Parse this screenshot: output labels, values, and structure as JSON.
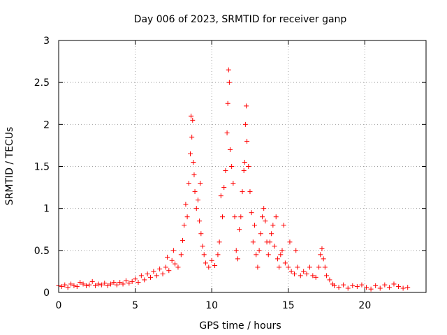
{
  "chart_data": {
    "type": "scatter",
    "title": "Day 006 of 2023, SRMTID for receiver ganp",
    "xlabel": "GPS time / hours",
    "ylabel": "SRMTID / TECUs",
    "xlim": [
      0,
      24
    ],
    "ylim": [
      0,
      3
    ],
    "xticks": [
      0,
      5,
      10,
      15,
      20
    ],
    "xtick_labels": [
      "0",
      "5",
      "10",
      "15",
      "20"
    ],
    "yticks": [
      0,
      0.5,
      1,
      1.5,
      2,
      2.5,
      3
    ],
    "ytick_labels": [
      "0",
      "0.5",
      "1",
      "1.5",
      "2",
      "2.5",
      "3"
    ],
    "grid": true,
    "marker": "+",
    "color": "#ff0000",
    "series": [
      {
        "name": "SRMTID",
        "points": [
          [
            0.0,
            0.08
          ],
          [
            0.2,
            0.07
          ],
          [
            0.4,
            0.09
          ],
          [
            0.6,
            0.06
          ],
          [
            0.8,
            0.1
          ],
          [
            1.0,
            0.08
          ],
          [
            1.2,
            0.07
          ],
          [
            1.4,
            0.12
          ],
          [
            1.6,
            0.1
          ],
          [
            1.8,
            0.08
          ],
          [
            2.0,
            0.09
          ],
          [
            2.2,
            0.13
          ],
          [
            2.4,
            0.08
          ],
          [
            2.6,
            0.1
          ],
          [
            2.8,
            0.09
          ],
          [
            3.0,
            0.11
          ],
          [
            3.2,
            0.08
          ],
          [
            3.4,
            0.1
          ],
          [
            3.6,
            0.12
          ],
          [
            3.8,
            0.09
          ],
          [
            4.0,
            0.12
          ],
          [
            4.2,
            0.1
          ],
          [
            4.4,
            0.14
          ],
          [
            4.6,
            0.11
          ],
          [
            4.8,
            0.13
          ],
          [
            5.0,
            0.16
          ],
          [
            5.2,
            0.12
          ],
          [
            5.4,
            0.2
          ],
          [
            5.6,
            0.15
          ],
          [
            5.8,
            0.22
          ],
          [
            6.0,
            0.18
          ],
          [
            6.2,
            0.25
          ],
          [
            6.4,
            0.2
          ],
          [
            6.6,
            0.28
          ],
          [
            6.8,
            0.22
          ],
          [
            7.0,
            0.3
          ],
          [
            7.1,
            0.42
          ],
          [
            7.2,
            0.26
          ],
          [
            7.4,
            0.38
          ],
          [
            7.5,
            0.5
          ],
          [
            7.6,
            0.34
          ],
          [
            7.8,
            0.3
          ],
          [
            8.0,
            0.45
          ],
          [
            8.1,
            0.62
          ],
          [
            8.2,
            0.8
          ],
          [
            8.3,
            1.05
          ],
          [
            8.4,
            0.9
          ],
          [
            8.5,
            1.3
          ],
          [
            8.6,
            1.65
          ],
          [
            8.65,
            2.1
          ],
          [
            8.7,
            1.85
          ],
          [
            8.75,
            2.05
          ],
          [
            8.8,
            1.55
          ],
          [
            8.85,
            1.4
          ],
          [
            8.9,
            1.2
          ],
          [
            9.0,
            1.0
          ],
          [
            9.1,
            1.1
          ],
          [
            9.2,
            0.85
          ],
          [
            9.25,
            1.3
          ],
          [
            9.3,
            0.7
          ],
          [
            9.4,
            0.55
          ],
          [
            9.5,
            0.45
          ],
          [
            9.6,
            0.35
          ],
          [
            9.8,
            0.3
          ],
          [
            10.0,
            0.38
          ],
          [
            10.2,
            0.32
          ],
          [
            10.4,
            0.45
          ],
          [
            10.5,
            0.6
          ],
          [
            10.6,
            1.15
          ],
          [
            10.7,
            0.9
          ],
          [
            10.8,
            1.25
          ],
          [
            10.9,
            1.45
          ],
          [
            11.0,
            1.9
          ],
          [
            11.05,
            2.25
          ],
          [
            11.1,
            2.65
          ],
          [
            11.15,
            2.5
          ],
          [
            11.2,
            1.7
          ],
          [
            11.3,
            1.5
          ],
          [
            11.4,
            1.3
          ],
          [
            11.5,
            0.9
          ],
          [
            11.6,
            0.5
          ],
          [
            11.7,
            0.4
          ],
          [
            11.8,
            0.75
          ],
          [
            11.9,
            0.9
          ],
          [
            12.0,
            1.2
          ],
          [
            12.1,
            1.45
          ],
          [
            12.15,
            1.55
          ],
          [
            12.2,
            2.0
          ],
          [
            12.25,
            2.22
          ],
          [
            12.3,
            1.8
          ],
          [
            12.4,
            1.5
          ],
          [
            12.5,
            1.2
          ],
          [
            12.6,
            0.95
          ],
          [
            12.7,
            0.6
          ],
          [
            12.8,
            0.8
          ],
          [
            12.9,
            0.45
          ],
          [
            13.0,
            0.3
          ],
          [
            13.1,
            0.5
          ],
          [
            13.2,
            0.7
          ],
          [
            13.3,
            0.9
          ],
          [
            13.4,
            1.0
          ],
          [
            13.5,
            0.85
          ],
          [
            13.6,
            0.6
          ],
          [
            13.7,
            0.45
          ],
          [
            13.8,
            0.6
          ],
          [
            13.9,
            0.7
          ],
          [
            14.0,
            0.8
          ],
          [
            14.1,
            0.55
          ],
          [
            14.2,
            0.9
          ],
          [
            14.3,
            0.4
          ],
          [
            14.4,
            0.3
          ],
          [
            14.5,
            0.45
          ],
          [
            14.6,
            0.5
          ],
          [
            14.7,
            0.8
          ],
          [
            14.8,
            0.35
          ],
          [
            15.0,
            0.3
          ],
          [
            15.1,
            0.6
          ],
          [
            15.2,
            0.25
          ],
          [
            15.4,
            0.22
          ],
          [
            15.5,
            0.5
          ],
          [
            15.6,
            0.3
          ],
          [
            15.8,
            0.2
          ],
          [
            16.0,
            0.25
          ],
          [
            16.2,
            0.22
          ],
          [
            16.4,
            0.3
          ],
          [
            16.6,
            0.2
          ],
          [
            16.8,
            0.18
          ],
          [
            17.0,
            0.3
          ],
          [
            17.1,
            0.45
          ],
          [
            17.2,
            0.52
          ],
          [
            17.3,
            0.4
          ],
          [
            17.4,
            0.3
          ],
          [
            17.5,
            0.2
          ],
          [
            17.7,
            0.15
          ],
          [
            17.9,
            0.1
          ],
          [
            18.0,
            0.08
          ],
          [
            18.3,
            0.06
          ],
          [
            18.6,
            0.09
          ],
          [
            18.9,
            0.05
          ],
          [
            19.2,
            0.08
          ],
          [
            19.5,
            0.07
          ],
          [
            19.8,
            0.09
          ],
          [
            20.1,
            0.06
          ],
          [
            20.4,
            0.04
          ],
          [
            20.7,
            0.08
          ],
          [
            21.0,
            0.05
          ],
          [
            21.3,
            0.09
          ],
          [
            21.6,
            0.06
          ],
          [
            21.9,
            0.1
          ],
          [
            22.2,
            0.07
          ],
          [
            22.5,
            0.05
          ],
          [
            22.8,
            0.06
          ]
        ]
      }
    ]
  }
}
